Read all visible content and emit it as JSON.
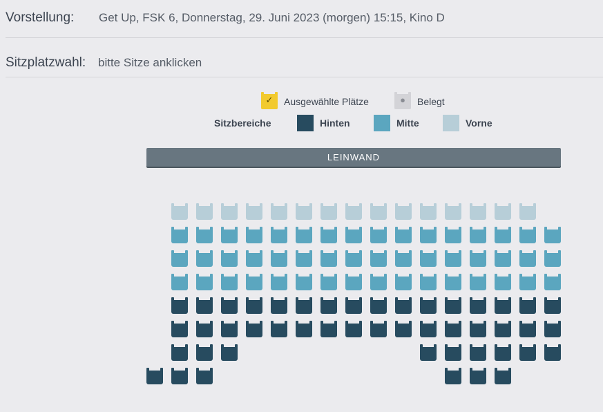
{
  "performance": {
    "label": "Vorstellung:",
    "value": "Get Up, FSK 6, Donnerstag, 29. Juni 2023 (morgen) 15:15, Kino D"
  },
  "seat_selection": {
    "label": "Sitzplatzwahl:",
    "hint": "bitte Sitze anklicken"
  },
  "legend": {
    "selected_label": "Ausgewählte Plätze",
    "occupied_label": "Belegt",
    "areas_label": "Sitzbereiche",
    "areas": [
      {
        "label": "Hinten",
        "color": "#274b5f"
      },
      {
        "label": "Mitte",
        "color": "#5ba6bf"
      },
      {
        "label": "Vorne",
        "color": "#b7ced8"
      }
    ]
  },
  "screen_label": "LEINWAND",
  "colors": {
    "selected": "#f2ca2e",
    "occupied": "#d3d3d7",
    "hinten": "#274b5f",
    "mitte": "#5ba6bf",
    "vorne": "#b7ced8"
  },
  "seat_rows": [
    {
      "area": "vorne",
      "seats": [
        1,
        2,
        3,
        4,
        5,
        6,
        7,
        8,
        9,
        10,
        11,
        12,
        13,
        14,
        15
      ]
    },
    {
      "area": "mitte",
      "seats": [
        1,
        2,
        3,
        4,
        5,
        6,
        7,
        8,
        9,
        10,
        11,
        12,
        13,
        14,
        15,
        16
      ]
    },
    {
      "area": "mitte",
      "seats": [
        1,
        2,
        3,
        4,
        5,
        6,
        7,
        8,
        9,
        10,
        11,
        12,
        13,
        14,
        15,
        16
      ]
    },
    {
      "area": "mitte",
      "seats": [
        1,
        2,
        3,
        4,
        5,
        6,
        7,
        8,
        9,
        10,
        11,
        12,
        13,
        14,
        15,
        16
      ]
    },
    {
      "area": "hinten",
      "seats": [
        1,
        2,
        3,
        4,
        5,
        6,
        7,
        8,
        9,
        10,
        11,
        12,
        13,
        14,
        15,
        16
      ]
    },
    {
      "area": "hinten",
      "seats": [
        1,
        2,
        3,
        4,
        5,
        6,
        7,
        8,
        9,
        10,
        11,
        12,
        13,
        14,
        15,
        16
      ]
    },
    {
      "area": "hinten",
      "seats": [
        1,
        2,
        3,
        11,
        12,
        13,
        14,
        15,
        16
      ]
    },
    {
      "area": "hinten",
      "seats": [
        0,
        1,
        2,
        12,
        13,
        14
      ]
    }
  ]
}
